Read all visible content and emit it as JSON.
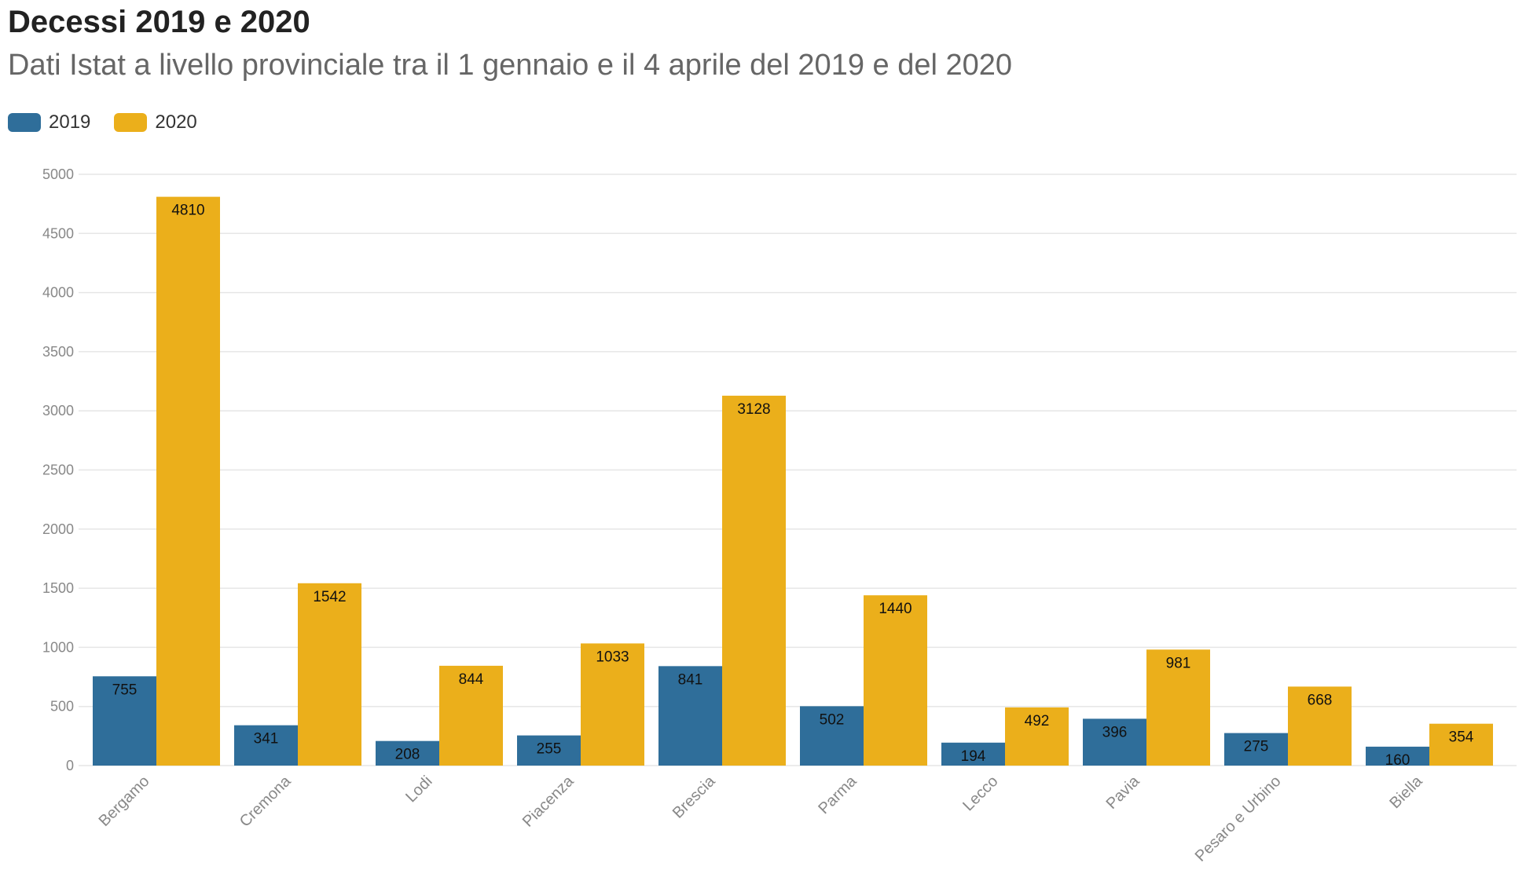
{
  "colors": {
    "s2019": "#2f6e9a",
    "s2020": "#ebaf1b",
    "grid": "#e6e6e6"
  },
  "chart_data": {
    "type": "bar",
    "title": "Decessi 2019 e 2020",
    "subtitle": "Dati Istat a livello provinciale tra il 1 gennaio e il 4 aprile del 2019 e del 2020",
    "categories": [
      "Bergamo",
      "Cremona",
      "Lodi",
      "Piacenza",
      "Brescia",
      "Parma",
      "Lecco",
      "Pavia",
      "Pesaro e Urbino",
      "Biella"
    ],
    "series": [
      {
        "name": "2019",
        "values": [
          755,
          341,
          208,
          255,
          841,
          502,
          194,
          396,
          275,
          160
        ]
      },
      {
        "name": "2020",
        "values": [
          4810,
          1542,
          844,
          1033,
          3128,
          1440,
          492,
          981,
          668,
          354
        ]
      }
    ],
    "ylim": [
      0,
      5000
    ],
    "yticks": [
      0,
      500,
      1000,
      1500,
      2000,
      2500,
      3000,
      3500,
      4000,
      4500,
      5000
    ],
    "xlabel": "",
    "ylabel": "",
    "legend_position": "top-left",
    "grid": true
  }
}
